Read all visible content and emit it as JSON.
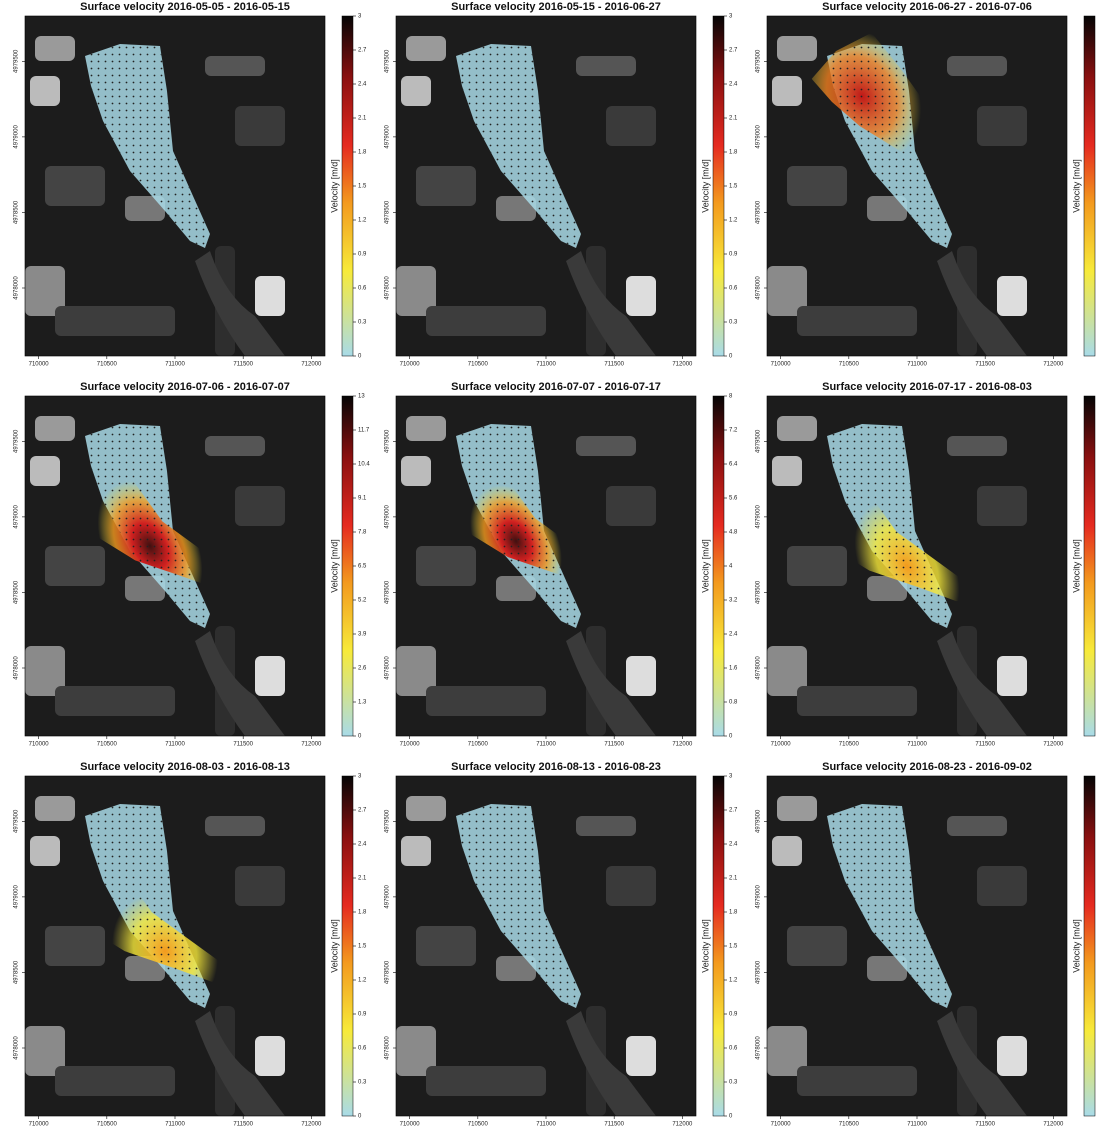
{
  "xlim": [
    709900,
    712100
  ],
  "ylim": [
    4977550,
    4979800
  ],
  "x_ticks": [
    710000,
    710500,
    711000,
    711500,
    712000
  ],
  "y_ticks": [
    4978000,
    4978500,
    4979000,
    4979500
  ],
  "panels": [
    {
      "title": "Surface velocity 2016-05-05 - 2016-05-15",
      "colorbar_label": "Velocity [m/d]",
      "clim": [
        0,
        3
      ],
      "colorbar_ticks": [
        0,
        0.3,
        0.6,
        0.9,
        1.2,
        1.5,
        1.8,
        2.1,
        2.4,
        2.7,
        3
      ]
    },
    {
      "title": "Surface velocity 2016-05-15 - 2016-06-27",
      "colorbar_label": "Velocity [m/d]",
      "clim": [
        0,
        3
      ],
      "colorbar_ticks": [
        0,
        0.3,
        0.6,
        0.9,
        1.2,
        1.5,
        1.8,
        2.1,
        2.4,
        2.7,
        3
      ]
    },
    {
      "title": "Surface velocity 2016-06-27 - 2016-07-06",
      "colorbar_label": "Velocity [m/d]"
    },
    {
      "title": "Surface velocity 2016-07-06 - 2016-07-07",
      "colorbar_label": "Velocity [m/d]",
      "clim": [
        0,
        13
      ],
      "colorbar_ticks": [
        0,
        1.3,
        2.6,
        3.9,
        5.2,
        6.5,
        7.8,
        9.1,
        10.4,
        11.7,
        13
      ]
    },
    {
      "title": "Surface velocity 2016-07-07 - 2016-07-17",
      "colorbar_label": "Velocity [m/d]",
      "clim": [
        0,
        8
      ],
      "colorbar_ticks": [
        0,
        0.8,
        1.6,
        2.4,
        3.2,
        4,
        4.8,
        5.6,
        6.4,
        7.2,
        8
      ]
    },
    {
      "title": "Surface velocity 2016-07-17 - 2016-08-03",
      "colorbar_label": "Velocity [m/d]"
    },
    {
      "title": "Surface velocity 2016-08-03 - 2016-08-13",
      "colorbar_label": "Velocity [m/d]",
      "clim": [
        0,
        3
      ],
      "colorbar_ticks": [
        0,
        0.3,
        0.6,
        0.9,
        1.2,
        1.5,
        1.8,
        2.1,
        2.4,
        2.7,
        3
      ]
    },
    {
      "title": "Surface velocity 2016-08-13 - 2016-08-23",
      "colorbar_label": "Velocity [m/d]",
      "clim": [
        0,
        3
      ],
      "colorbar_ticks": [
        0,
        0.3,
        0.6,
        0.9,
        1.2,
        1.5,
        1.8,
        2.1,
        2.4,
        2.7,
        3
      ]
    },
    {
      "title": "Surface velocity 2016-08-23 - 2016-09-02",
      "colorbar_label": "Velocity [m/d]"
    }
  ]
}
